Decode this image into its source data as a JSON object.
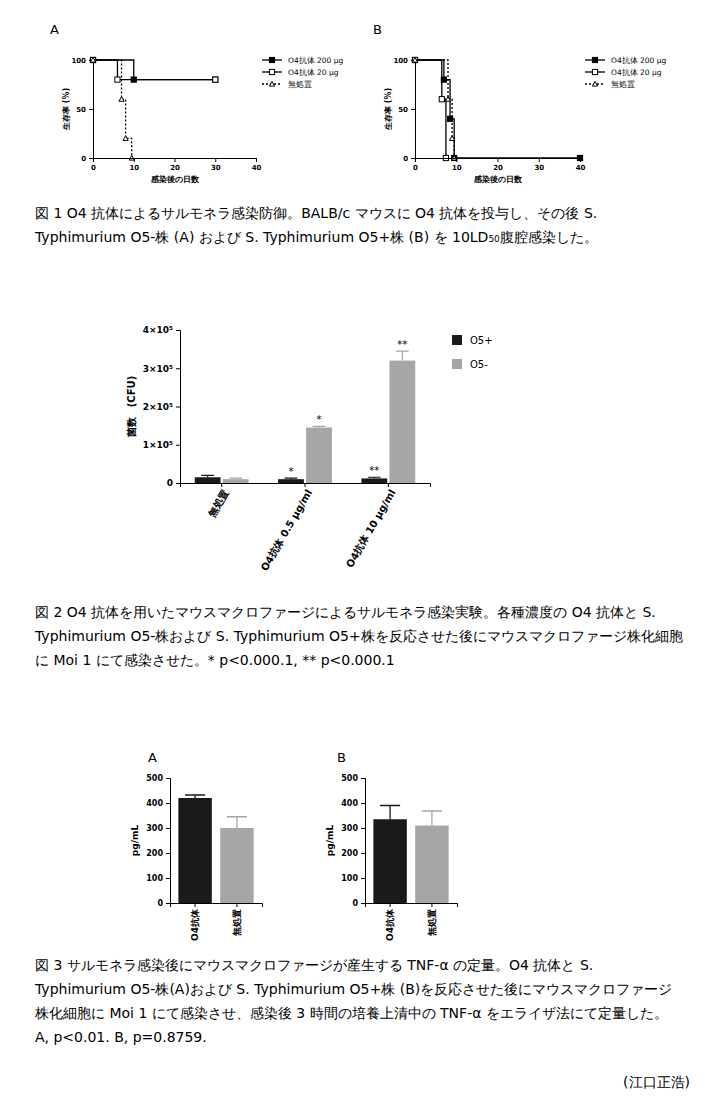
{
  "chart_data": [
    {
      "type": "step",
      "title": "A",
      "xlabel": "感染後の日数",
      "ylabel": "生存率 (%)",
      "xlim": [
        0,
        40
      ],
      "xticks": [
        0,
        10,
        20,
        30,
        40
      ],
      "ylim": [
        0,
        100
      ],
      "yticks": [
        0,
        50,
        100
      ],
      "legend": "right",
      "series": [
        {
          "name": "O4抗体 200 µg",
          "color": "#000000",
          "line_style": "solid",
          "marker": "square",
          "x": [
            0,
            10,
            30
          ],
          "values": [
            100,
            80,
            80
          ]
        },
        {
          "name": "O4抗体 20 µg",
          "color": "#000000",
          "line_style": "solid",
          "marker": "square-open",
          "x": [
            0,
            6,
            30
          ],
          "values": [
            100,
            80,
            80
          ]
        },
        {
          "name": "無処置",
          "color": "#000000",
          "line_style": "dotted",
          "marker": "triangle-open",
          "x": [
            0,
            7,
            8,
            9.5
          ],
          "values": [
            100,
            60,
            20,
            0
          ]
        }
      ]
    },
    {
      "type": "step",
      "title": "B",
      "xlabel": "感染後の日数",
      "ylabel": "生存率 (%)",
      "xlim": [
        0,
        40
      ],
      "xticks": [
        0,
        10,
        20,
        30,
        40
      ],
      "ylim": [
        0,
        100
      ],
      "yticks": [
        0,
        50,
        100
      ],
      "legend": "right",
      "series": [
        {
          "name": "O4抗体 200 µg",
          "color": "#000000",
          "line_style": "solid",
          "marker": "square",
          "x": [
            0,
            7,
            8.5,
            9.5,
            40
          ],
          "values": [
            100,
            80,
            40,
            0,
            0
          ]
        },
        {
          "name": "O4抗体 20 µg",
          "color": "#000000",
          "line_style": "solid",
          "marker": "square-open",
          "x": [
            0,
            6.5,
            7.5
          ],
          "values": [
            100,
            60,
            0
          ]
        },
        {
          "name": "無処置",
          "color": "#000000",
          "line_style": "dotted",
          "marker": "triangle-open",
          "x": [
            0,
            8,
            9,
            9.5
          ],
          "values": [
            100,
            60,
            20,
            0
          ]
        }
      ]
    },
    {
      "type": "bar",
      "ylabel": "菌数　(CFU)",
      "legend": "right",
      "categories": [
        "無処置",
        "O4抗体 0.5 µg/ml",
        "O4抗体 10 µg/ml"
      ],
      "ylim": [
        0,
        400000
      ],
      "yticks": [
        0,
        {
          "value": 100000,
          "label": "1×10⁵"
        },
        {
          "value": 200000,
          "label": "2×10⁵"
        },
        {
          "value": 300000,
          "label": "3×10⁵"
        },
        {
          "value": 400000,
          "label": "4×10⁵"
        }
      ],
      "series": [
        {
          "name": "O5+",
          "color": "#1a1a1a",
          "values": [
            15000,
            10000,
            12000
          ],
          "errors": [
            5000,
            3000,
            3000
          ],
          "annotations": [
            null,
            "*",
            "**"
          ]
        },
        {
          "name": "O5-",
          "color": "#a6a6a6",
          "values": [
            10000,
            145000,
            320000
          ],
          "errors": [
            3000,
            3000,
            25000
          ],
          "annotations": [
            null,
            "*",
            "**"
          ]
        }
      ]
    },
    {
      "type": "bar",
      "title": "A",
      "ylabel": "pg/mL",
      "categories": [
        "O4抗体",
        "無処置"
      ],
      "values": [
        420,
        300
      ],
      "errors": [
        12,
        45
      ],
      "colors": [
        "#1a1a1a",
        "#a6a6a6"
      ],
      "ylim": [
        0,
        500
      ],
      "yticks": [
        0,
        100,
        200,
        300,
        400,
        500
      ]
    },
    {
      "type": "bar",
      "title": "B",
      "ylabel": "pg/mL",
      "categories": [
        "O4抗体",
        "無処置"
      ],
      "values": [
        335,
        310
      ],
      "errors": [
        55,
        58
      ],
      "colors": [
        "#1a1a1a",
        "#a6a6a6"
      ],
      "ylim": [
        0,
        500
      ],
      "yticks": [
        0,
        100,
        200,
        300,
        400,
        500
      ]
    }
  ],
  "captions": [
    [
      "図 1 O4 抗体によるサルモネラ感染防御。BALB/c マウスに O4 抗体を投与し、その後 S.",
      "Typhimurium O5-株 (A) および S. Typhimurium O5+株 (B) を 10LD₅₀腹腔感染した。"
    ],
    [
      "図 2 O4 抗体を用いたマウスマクロファージによるサルモネラ感染実験。各種濃度の O4 抗体と S.",
      "Typhimurium O5-株および S.  Typhimurium O5+株を反応させた後にマウスマクロファージ株化細胞",
      "に Moi 1 にて感染させた。* p<0.000.1, ** p<0.000.1"
    ],
    [
      "図 3 サルモネラ感染後にマウスマクロファージが産生する TNF-α の定量。O4 抗体と S.",
      "Typhimurium O5-株(A)および S. Typhimurium O5+株 (B)を反応させた後にマウスマクロファージ",
      "株化細胞に Moi 1 にて感染させ、感染後 3 時間の培養上清中の TNF-α をエライザ法にて定量した。",
      "A, p<0.01. B, p=0.8759."
    ]
  ],
  "credit": "(江口正浩)"
}
